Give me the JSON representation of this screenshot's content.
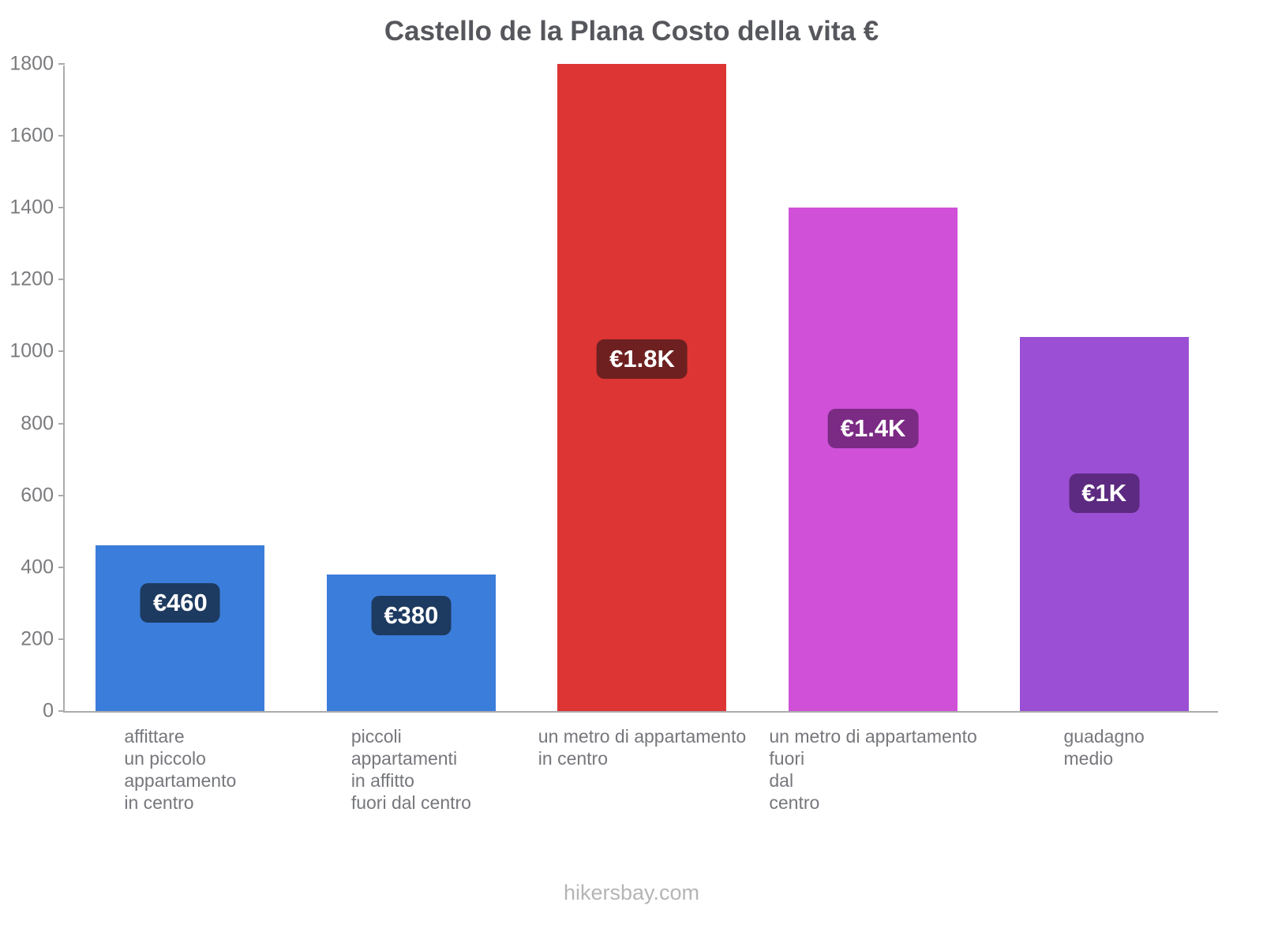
{
  "chart": {
    "title": "Castello de la Plana Costo della vita €"
  },
  "footer": {
    "text": "hikersbay.com"
  },
  "chart_data": {
    "type": "bar",
    "title": "Castello de la Plana Costo della vita €",
    "xlabel": "",
    "ylabel": "",
    "currency": "EUR",
    "ylim": [
      0,
      1800
    ],
    "yticks": [
      0,
      200,
      400,
      600,
      800,
      1000,
      1200,
      1400,
      1600,
      1800
    ],
    "grid": false,
    "legend": false,
    "categories": [
      "affittare un piccolo appartamento in centro",
      "piccoli appartamenti in affitto fuori dal centro",
      "un metro di appartamento in centro",
      "un metro di appartamento fuori dal centro",
      "guadagno medio"
    ],
    "values": [
      460,
      380,
      1800,
      1400,
      1040
    ],
    "bars": [
      {
        "category_lines": [
          "affittare",
          "un piccolo",
          "appartamento",
          "in centro"
        ],
        "value": 460,
        "value_label": "€460",
        "bar_color": "#3b7dda",
        "label_bg": "#1d3a60",
        "label_center_y": 300
      },
      {
        "category_lines": [
          "piccoli",
          "appartamenti",
          "in affitto",
          "fuori dal centro"
        ],
        "value": 380,
        "value_label": "€380",
        "bar_color": "#3b7dda",
        "label_bg": "#1d3a60",
        "label_center_y": 265
      },
      {
        "category_lines": [
          "un metro di appartamento",
          "in centro"
        ],
        "value": 1800,
        "value_label": "€1.8K",
        "bar_color": "#dc3534",
        "label_bg": "#6e2020",
        "label_center_y": 980
      },
      {
        "category_lines": [
          "un metro di appartamento",
          "fuori",
          "dal",
          "centro"
        ],
        "value": 1400,
        "value_label": "€1.4K",
        "bar_color": "#d050d8",
        "label_bg": "#7b2b84",
        "label_center_y": 785
      },
      {
        "category_lines": [
          "guadagno",
          "medio"
        ],
        "value": 1040,
        "value_label": "€1K",
        "bar_color": "#9b4fd4",
        "label_bg": "#5c2a80",
        "label_center_y": 605
      }
    ]
  }
}
